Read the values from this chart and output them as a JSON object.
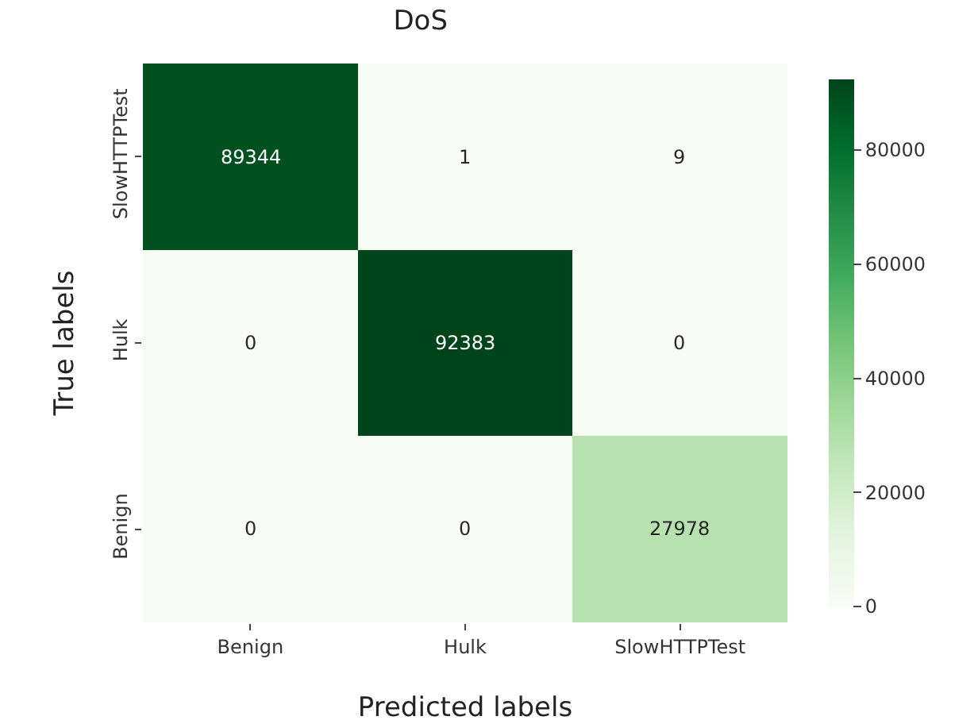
{
  "chart_data": {
    "type": "heatmap",
    "title": "DoS",
    "xlabel": "Predicted labels",
    "ylabel": "True labels",
    "categories": [
      "Benign",
      "Hulk",
      "SlowHTTPTest"
    ],
    "y_categories": [
      "SlowHTTPTest",
      "Hulk",
      "Benign"
    ],
    "cells": [
      [
        89344,
        1,
        9
      ],
      [
        0,
        92383,
        0
      ],
      [
        0,
        0,
        27978
      ]
    ],
    "data_labels": true,
    "clim": [
      0,
      92383
    ],
    "cticks": [
      0,
      20000,
      40000,
      60000,
      80000
    ]
  }
}
